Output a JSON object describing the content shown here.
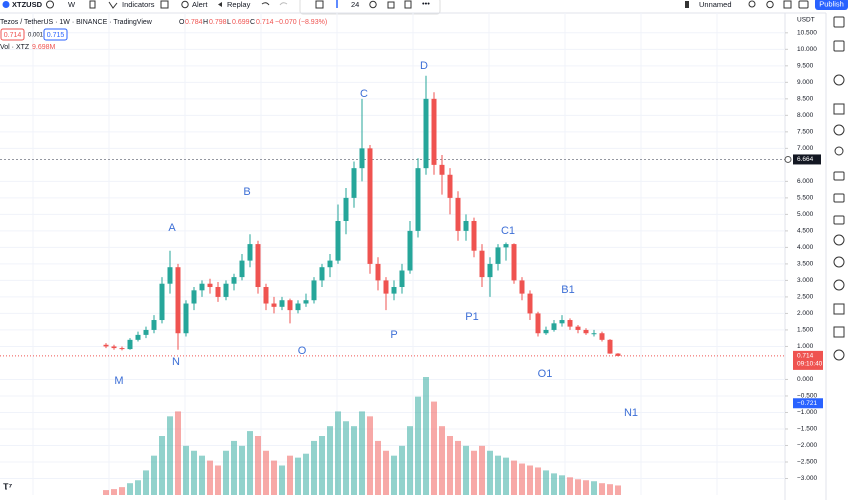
{
  "toolbar": {
    "symbol": "XTZUSD",
    "interval": "W",
    "indicators": "Indicators",
    "alert": "Alert",
    "replay": "Replay",
    "line_width": "24",
    "layout_name": "Unnamed",
    "publish": "Publish"
  },
  "legend": {
    "title": "Tezos / TetherUS · 1W · BINANCE · TradingView",
    "o": "O",
    "h": "H",
    "l": "L",
    "c": "C",
    "change": "−0.070 (−8.93%)",
    "bid": "0.714",
    "spread": "0.001",
    "ask": "0.715",
    "volume_title": "Vol · XTZ",
    "volume": "9.698M"
  },
  "price_axis": {
    "currency": "USDT",
    "crosshair": {
      "value": 6.664,
      "label": "6.664"
    },
    "last_price": {
      "value": 0.714,
      "label": "0.714"
    },
    "countdown": "09:10:40",
    "cursor": {
      "value": -0.721,
      "label": "−0.721"
    }
  },
  "chart": {
    "type": "candlestick",
    "ylim": [
      -3.5,
      11.1
    ],
    "yticks": [
      {
        "value": 10.5,
        "label": "10.500"
      },
      {
        "value": 10,
        "label": "10.000"
      },
      {
        "value": 9.5,
        "label": "9.500"
      },
      {
        "value": 9,
        "label": "9.000"
      },
      {
        "value": 8.5,
        "label": "8.500"
      },
      {
        "value": 8,
        "label": "8.000"
      },
      {
        "value": 7.5,
        "label": "7.500"
      },
      {
        "value": 7,
        "label": "7.000"
      },
      {
        "value": 6,
        "label": "6.000"
      },
      {
        "value": 5.5,
        "label": "5.500"
      },
      {
        "value": 5,
        "label": "5.000"
      },
      {
        "value": 4.5,
        "label": "4.500"
      },
      {
        "value": 4,
        "label": "4.000"
      },
      {
        "value": 3.5,
        "label": "3.500"
      },
      {
        "value": 3,
        "label": "3.000"
      },
      {
        "value": 2.5,
        "label": "2.500"
      },
      {
        "value": 2,
        "label": "2.000"
      },
      {
        "value": 1.5,
        "label": "1.500"
      },
      {
        "value": 1,
        "label": "1.000"
      },
      {
        "value": 0,
        "label": "0.000"
      },
      {
        "value": -0.5,
        "label": "−0.500"
      },
      {
        "value": -1,
        "label": "−1.000"
      },
      {
        "value": -1.5,
        "label": "−1.500"
      },
      {
        "value": -2,
        "label": "−2.000"
      },
      {
        "value": -2.5,
        "label": "−2.500"
      },
      {
        "value": -3,
        "label": "−3.000"
      }
    ],
    "up_color": "#26a69a",
    "down_color": "#ef5350",
    "grid": true,
    "candles": [
      [
        1.05,
        1.1,
        0.95,
        1.0
      ],
      [
        1.0,
        1.05,
        0.9,
        0.95
      ],
      [
        0.95,
        1.0,
        0.88,
        0.92
      ],
      [
        0.92,
        1.25,
        0.9,
        1.2
      ],
      [
        1.2,
        1.45,
        1.15,
        1.35
      ],
      [
        1.35,
        1.6,
        1.25,
        1.5
      ],
      [
        1.5,
        1.95,
        1.4,
        1.8
      ],
      [
        1.8,
        3.1,
        1.7,
        2.9
      ],
      [
        2.9,
        3.9,
        2.6,
        3.4
      ],
      [
        3.4,
        3.5,
        0.9,
        1.4
      ],
      [
        1.4,
        2.4,
        1.3,
        2.3
      ],
      [
        2.3,
        2.8,
        2.1,
        2.7
      ],
      [
        2.7,
        3.0,
        2.5,
        2.9
      ],
      [
        2.9,
        3.05,
        2.6,
        2.8
      ],
      [
        2.8,
        2.95,
        2.35,
        2.5
      ],
      [
        2.5,
        3.0,
        2.4,
        2.9
      ],
      [
        2.9,
        3.2,
        2.7,
        3.1
      ],
      [
        3.1,
        3.8,
        3.0,
        3.6
      ],
      [
        3.6,
        4.4,
        3.4,
        4.1
      ],
      [
        4.1,
        4.2,
        2.6,
        2.8
      ],
      [
        2.8,
        2.9,
        2.1,
        2.3
      ],
      [
        2.3,
        2.5,
        2.0,
        2.2
      ],
      [
        2.2,
        2.5,
        2.1,
        2.4
      ],
      [
        2.4,
        2.45,
        1.7,
        2.1
      ],
      [
        2.1,
        2.4,
        2.0,
        2.3
      ],
      [
        2.3,
        2.6,
        2.2,
        2.4
      ],
      [
        2.4,
        3.1,
        2.3,
        3.0
      ],
      [
        3.0,
        3.5,
        2.8,
        3.4
      ],
      [
        3.4,
        3.8,
        3.1,
        3.6
      ],
      [
        3.6,
        5.3,
        3.5,
        4.8
      ],
      [
        4.8,
        5.8,
        4.4,
        5.5
      ],
      [
        5.5,
        6.6,
        5.2,
        6.4
      ],
      [
        6.4,
        8.5,
        6.0,
        7.0
      ],
      [
        7.0,
        7.1,
        3.2,
        3.5
      ],
      [
        3.5,
        3.7,
        2.7,
        3.0
      ],
      [
        3.0,
        3.1,
        2.1,
        2.6
      ],
      [
        2.6,
        3.0,
        2.4,
        2.8
      ],
      [
        2.8,
        3.5,
        2.6,
        3.3
      ],
      [
        3.3,
        4.8,
        3.2,
        4.5
      ],
      [
        4.5,
        6.7,
        4.3,
        6.4
      ],
      [
        6.4,
        9.2,
        6.2,
        8.5
      ],
      [
        8.5,
        8.7,
        6.2,
        6.5
      ],
      [
        6.5,
        6.8,
        5.6,
        6.2
      ],
      [
        6.2,
        6.4,
        5.0,
        5.5
      ],
      [
        5.5,
        5.7,
        4.2,
        4.5
      ],
      [
        4.5,
        5.0,
        4.2,
        4.8
      ],
      [
        4.8,
        4.9,
        3.7,
        3.9
      ],
      [
        3.9,
        4.1,
        2.8,
        3.1
      ],
      [
        3.1,
        3.7,
        2.5,
        3.5
      ],
      [
        3.5,
        4.1,
        3.3,
        4.0
      ],
      [
        4.0,
        4.15,
        3.6,
        4.1
      ],
      [
        4.1,
        4.12,
        2.9,
        3.0
      ],
      [
        3.0,
        3.1,
        2.4,
        2.6
      ],
      [
        2.6,
        2.7,
        1.8,
        2.0
      ],
      [
        2.0,
        2.05,
        1.3,
        1.4
      ],
      [
        1.4,
        1.6,
        1.35,
        1.5
      ],
      [
        1.5,
        1.8,
        1.45,
        1.7
      ],
      [
        1.7,
        1.95,
        1.6,
        1.8
      ],
      [
        1.8,
        1.85,
        1.5,
        1.6
      ],
      [
        1.6,
        1.65,
        1.4,
        1.5
      ],
      [
        1.5,
        1.55,
        1.35,
        1.4
      ],
      [
        1.4,
        1.5,
        1.3,
        1.4
      ],
      [
        1.4,
        1.45,
        1.15,
        1.2
      ],
      [
        1.2,
        1.22,
        0.78,
        0.784
      ],
      [
        0.784,
        0.798,
        0.699,
        0.714
      ]
    ],
    "volumes": [
      5,
      6,
      8,
      12,
      15,
      25,
      40,
      60,
      80,
      85,
      50,
      45,
      40,
      35,
      30,
      45,
      55,
      50,
      65,
      60,
      45,
      35,
      30,
      40,
      38,
      42,
      55,
      60,
      70,
      85,
      75,
      70,
      85,
      80,
      55,
      45,
      40,
      50,
      70,
      100,
      120,
      95,
      70,
      60,
      55,
      50,
      45,
      50,
      45,
      40,
      38,
      35,
      32,
      30,
      28,
      25,
      22,
      20,
      18,
      16,
      15,
      14,
      12,
      11,
      9.698
    ],
    "wave_labels": [
      "A",
      "B",
      "C",
      "D",
      "C1",
      "B1",
      "P1",
      "P",
      "O",
      "N",
      "M",
      "O1",
      "N1"
    ]
  }
}
